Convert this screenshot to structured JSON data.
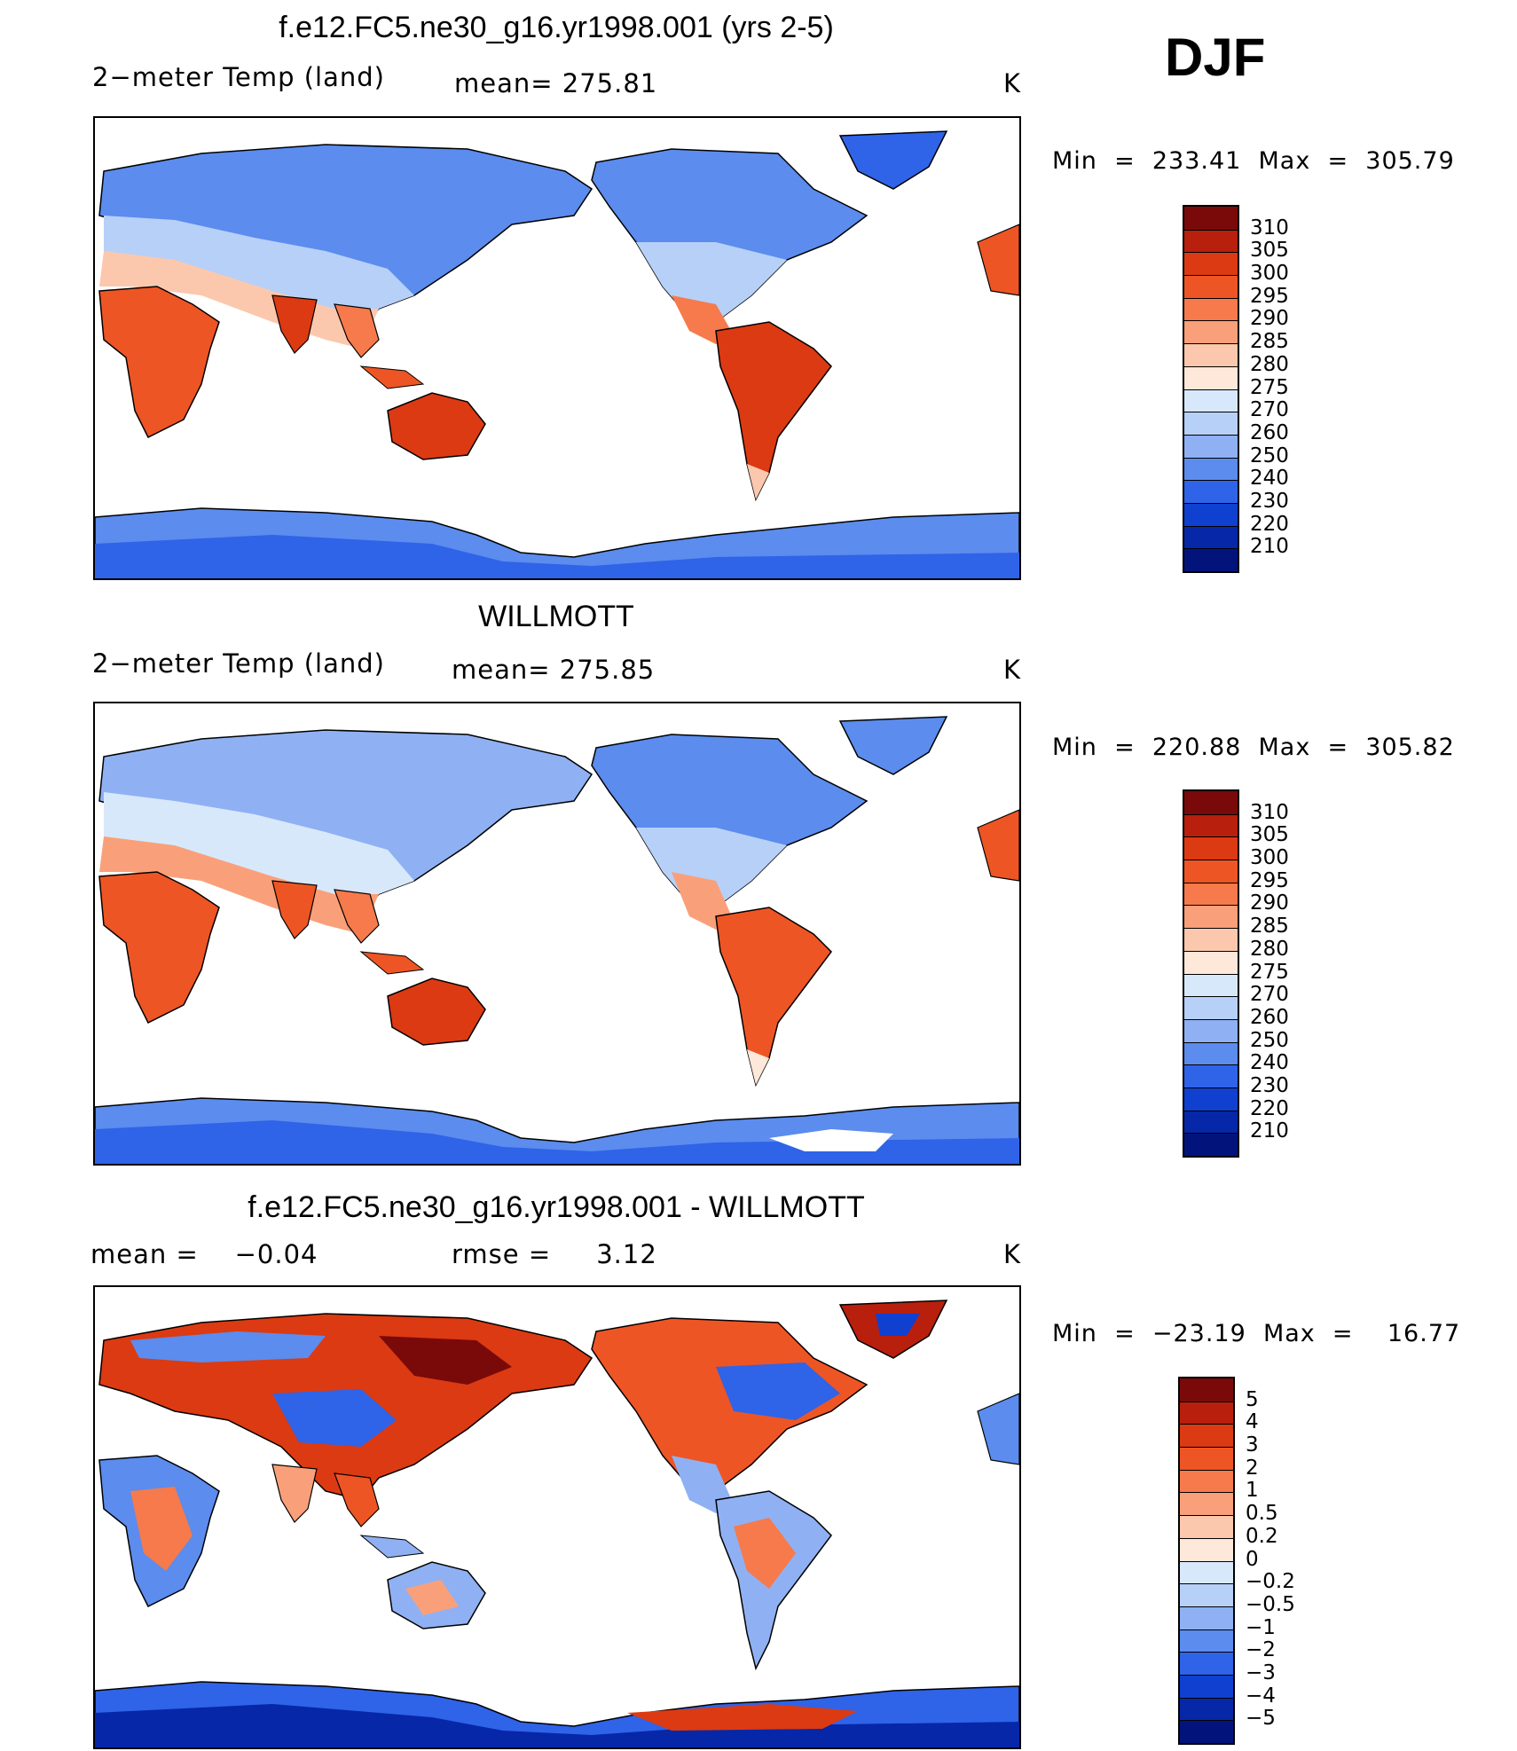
{
  "djf_label": "DJF",
  "chart_data": [
    {
      "type": "heatmap",
      "title": "f.e12.FC5.ne30_g16.yr1998.001 (yrs 2-5)",
      "left_label": "2−meter Temp (land)",
      "center_label": "mean= 275.81",
      "units": "K",
      "stats_text": "Min  =  233.41  Max  =  305.79",
      "stats": {
        "min": 233.41,
        "max": 305.79,
        "mean": 275.81
      },
      "colorbar": {
        "labels": [
          "310",
          "305",
          "300",
          "295",
          "290",
          "285",
          "280",
          "275",
          "270",
          "260",
          "250",
          "240",
          "230",
          "220",
          "210"
        ],
        "colors": [
          "#7a0a0a",
          "#b81f0d",
          "#dc3a12",
          "#ee5524",
          "#f67a4b",
          "#f9a07a",
          "#fcc8ad",
          "#fde8da",
          "#d8e8fb",
          "#b7d0f8",
          "#8fb1f3",
          "#5b8cee",
          "#2f63e8",
          "#1040cf",
          "#0627a8",
          "#02147c"
        ]
      }
    },
    {
      "type": "heatmap",
      "title": "WILLMOTT",
      "left_label": "2−meter Temp (land)",
      "center_label": "mean= 275.85",
      "units": "K",
      "stats_text": "Min  =  220.88  Max  =  305.82",
      "stats": {
        "min": 220.88,
        "max": 305.82,
        "mean": 275.85
      },
      "colorbar": {
        "labels": [
          "310",
          "305",
          "300",
          "295",
          "290",
          "285",
          "280",
          "275",
          "270",
          "260",
          "250",
          "240",
          "230",
          "220",
          "210"
        ],
        "colors": [
          "#7a0a0a",
          "#b81f0d",
          "#dc3a12",
          "#ee5524",
          "#f67a4b",
          "#f9a07a",
          "#fcc8ad",
          "#fde8da",
          "#d8e8fb",
          "#b7d0f8",
          "#8fb1f3",
          "#5b8cee",
          "#2f63e8",
          "#1040cf",
          "#0627a8",
          "#02147c"
        ]
      }
    },
    {
      "type": "heatmap",
      "title": "f.e12.FC5.ne30_g16.yr1998.001 - WILLMOTT",
      "left_label": "mean =    −0.04",
      "center_label": "rmse =     3.12",
      "units": "K",
      "stats_text": "Min  =  −23.19  Max  =    16.77",
      "stats": {
        "min": -23.19,
        "max": 16.77,
        "mean": -0.04,
        "rmse": 3.12
      },
      "colorbar": {
        "labels": [
          "5",
          "4",
          "3",
          "2",
          "1",
          "0.5",
          "0.2",
          "0",
          "−0.2",
          "−0.5",
          "−1",
          "−2",
          "−3",
          "−4",
          "−5"
        ],
        "colors": [
          "#7a0a0a",
          "#b81f0d",
          "#dc3a12",
          "#ee5524",
          "#f67a4b",
          "#f9a07a",
          "#fcc8ad",
          "#fde8da",
          "#d8e8fb",
          "#b7d0f8",
          "#8fb1f3",
          "#5b8cee",
          "#2f63e8",
          "#1040cf",
          "#0627a8",
          "#02147c"
        ]
      }
    }
  ]
}
